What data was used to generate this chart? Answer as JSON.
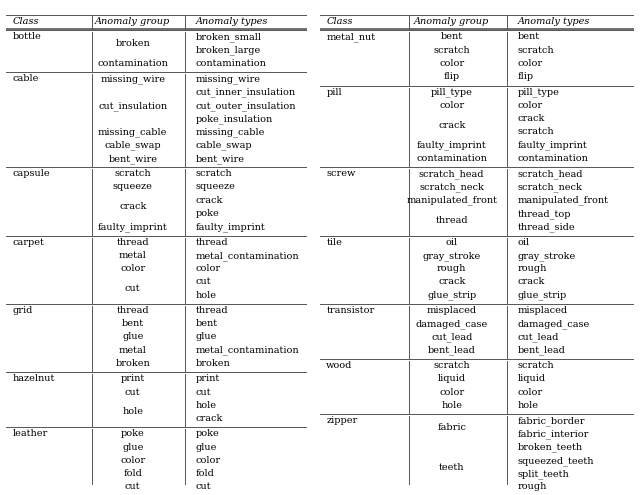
{
  "left_table": {
    "headers": [
      "Class",
      "Anomaly group",
      "Anomaly types"
    ],
    "rows": [
      {
        "class": "bottle",
        "groups": [
          "broken",
          "contamination"
        ],
        "types": [
          [
            "broken_small",
            "broken_large"
          ],
          [
            "contamination"
          ]
        ]
      },
      {
        "class": "cable",
        "groups": [
          "missing_wire",
          "cut_insulation",
          "missing_cable",
          "cable_swap",
          "bent_wire"
        ],
        "types": [
          [
            "missing_wire"
          ],
          [
            "cut_inner_insulation",
            "cut_outer_insulation",
            "poke_insulation"
          ],
          [
            "missing_cable"
          ],
          [
            "cable_swap"
          ],
          [
            "bent_wire"
          ]
        ]
      },
      {
        "class": "capsule",
        "groups": [
          "scratch",
          "squeeze",
          "crack",
          "faulty_imprint"
        ],
        "types": [
          [
            "scratch"
          ],
          [
            "squeeze"
          ],
          [
            "crack",
            "poke"
          ],
          [
            "faulty_imprint"
          ]
        ]
      },
      {
        "class": "carpet",
        "groups": [
          "thread",
          "metal",
          "color",
          "cut"
        ],
        "types": [
          [
            "thread"
          ],
          [
            "metal_contamination"
          ],
          [
            "color"
          ],
          [
            "cut",
            "hole"
          ]
        ]
      },
      {
        "class": "grid",
        "groups": [
          "thread",
          "bent",
          "glue",
          "metal",
          "broken"
        ],
        "types": [
          [
            "thread"
          ],
          [
            "bent"
          ],
          [
            "glue"
          ],
          [
            "metal_contamination"
          ],
          [
            "broken"
          ]
        ]
      },
      {
        "class": "hazelnut",
        "groups": [
          "print",
          "cut",
          "hole"
        ],
        "types": [
          [
            "print"
          ],
          [
            "cut"
          ],
          [
            "hole",
            "crack"
          ]
        ]
      },
      {
        "class": "leather",
        "groups": [
          "poke",
          "glue",
          "color",
          "fold",
          "cut"
        ],
        "types": [
          [
            "poke"
          ],
          [
            "glue"
          ],
          [
            "color"
          ],
          [
            "fold"
          ],
          [
            "cut"
          ]
        ]
      }
    ]
  },
  "right_table": {
    "headers": [
      "Class",
      "Anomaly group",
      "Anomaly types"
    ],
    "rows": [
      {
        "class": "metal_nut",
        "groups": [
          "bent",
          "scratch",
          "color",
          "flip"
        ],
        "types": [
          [
            "bent"
          ],
          [
            "scratch"
          ],
          [
            "color"
          ],
          [
            "flip"
          ]
        ]
      },
      {
        "class": "pill",
        "groups": [
          "pill_type",
          "color",
          "crack",
          "faulty_imprint",
          "contamination"
        ],
        "types": [
          [
            "pill_type"
          ],
          [
            "color"
          ],
          [
            "crack",
            "scratch"
          ],
          [
            "faulty_imprint"
          ],
          [
            "contamination"
          ]
        ]
      },
      {
        "class": "screw",
        "groups": [
          "scratch_head",
          "scratch_neck",
          "manipulated_front",
          "thread"
        ],
        "types": [
          [
            "scratch_head"
          ],
          [
            "scratch_neck"
          ],
          [
            "manipulated_front"
          ],
          [
            "thread_top",
            "thread_side"
          ]
        ]
      },
      {
        "class": "tile",
        "groups": [
          "oil",
          "gray_stroke",
          "rough",
          "crack",
          "glue_strip"
        ],
        "types": [
          [
            "oil"
          ],
          [
            "gray_stroke"
          ],
          [
            "rough"
          ],
          [
            "crack"
          ],
          [
            "glue_strip"
          ]
        ]
      },
      {
        "class": "transistor",
        "groups": [
          "misplaced",
          "damaged_case",
          "cut_lead",
          "bent_lead"
        ],
        "types": [
          [
            "misplaced"
          ],
          [
            "damaged_case"
          ],
          [
            "cut_lead"
          ],
          [
            "bent_lead"
          ]
        ]
      },
      {
        "class": "wood",
        "groups": [
          "scratch",
          "liquid",
          "color",
          "hole"
        ],
        "types": [
          [
            "scratch"
          ],
          [
            "liquid"
          ],
          [
            "color"
          ],
          [
            "hole"
          ]
        ]
      },
      {
        "class": "zipper",
        "groups": [
          "fabric",
          "teeth"
        ],
        "types": [
          [
            "fabric_border",
            "fabric_interior"
          ],
          [
            "broken_teeth",
            "squeezed_teeth",
            "split_teeth",
            "rough"
          ]
        ]
      }
    ]
  },
  "font_size": 7.0,
  "bg_color": "#ffffff",
  "line_color": "#555555",
  "text_color": "#000000",
  "figsize": [
    6.4,
    4.95
  ],
  "dpi": 100
}
